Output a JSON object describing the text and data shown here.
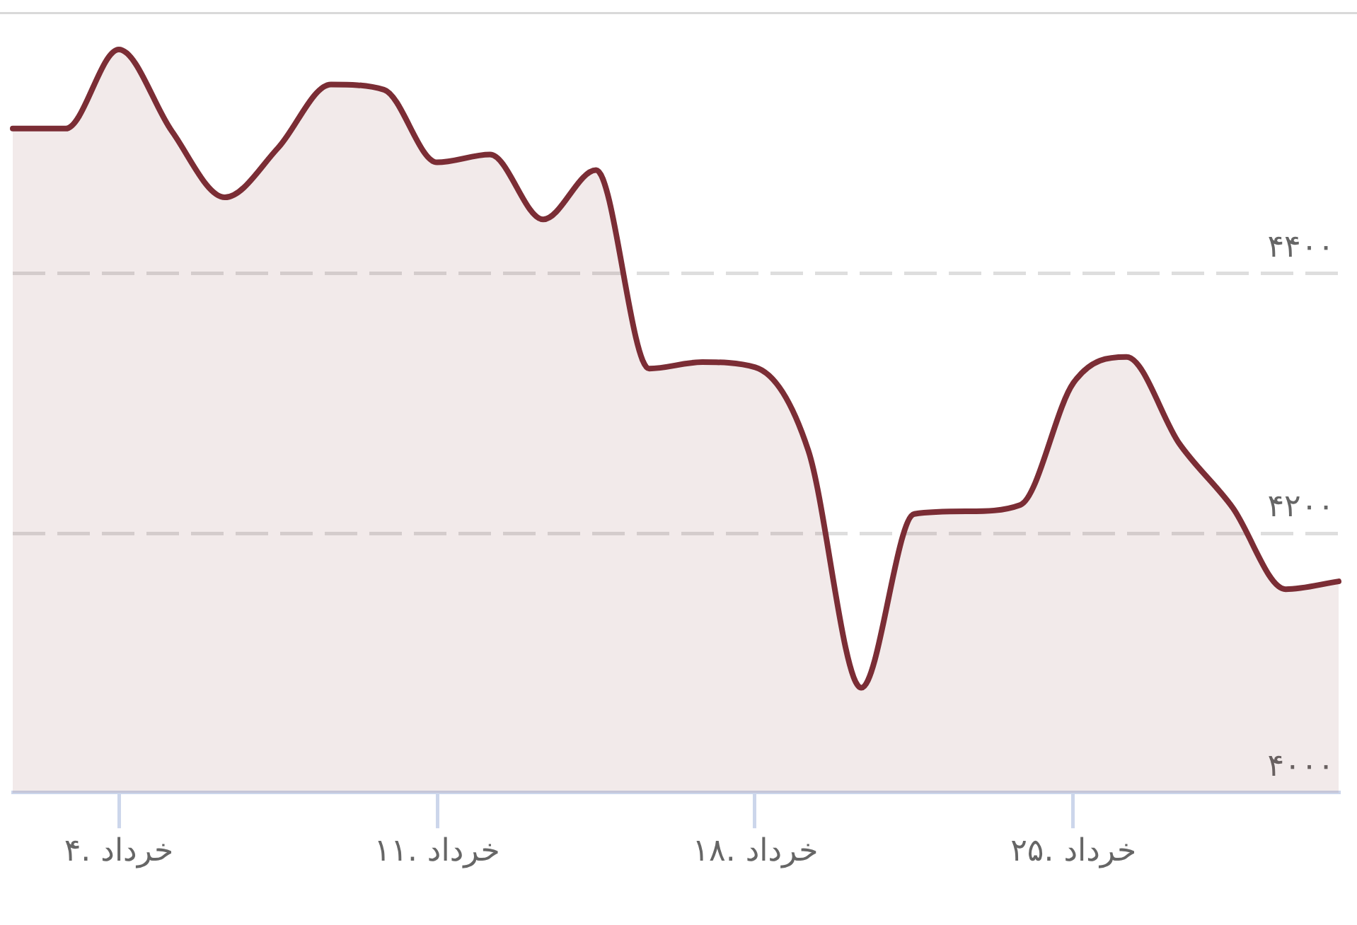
{
  "chart_data": {
    "type": "area",
    "categories": [
      null,
      null,
      "۴. خرداد",
      null,
      null,
      null,
      null,
      null,
      "۱۱. خرداد",
      null,
      null,
      null,
      null,
      null,
      "۱۸. خرداد",
      null,
      null,
      null,
      null,
      null,
      "۲۵. خرداد",
      null,
      null,
      null,
      null,
      null
    ],
    "series": [
      {
        "color": "#7b2d35",
        "values": [
          4512,
          4512,
          4573,
          4510,
          4459,
          4497,
          4546,
          4542,
          4486,
          4492,
          4442,
          4480,
          4327,
          4332,
          4328,
          4264,
          4081,
          4215,
          4217,
          4222,
          4316,
          4336,
          4269,
          4220,
          4157,
          4163
        ]
      }
    ],
    "ylim": [
      4000,
      4600
    ],
    "yticks": [
      {
        "value": 4000,
        "label": "۴۰۰۰"
      },
      {
        "value": 4200,
        "label": "۴۲۰۰"
      },
      {
        "value": 4400,
        "label": "۴۴۰۰"
      }
    ],
    "grid": "y"
  }
}
